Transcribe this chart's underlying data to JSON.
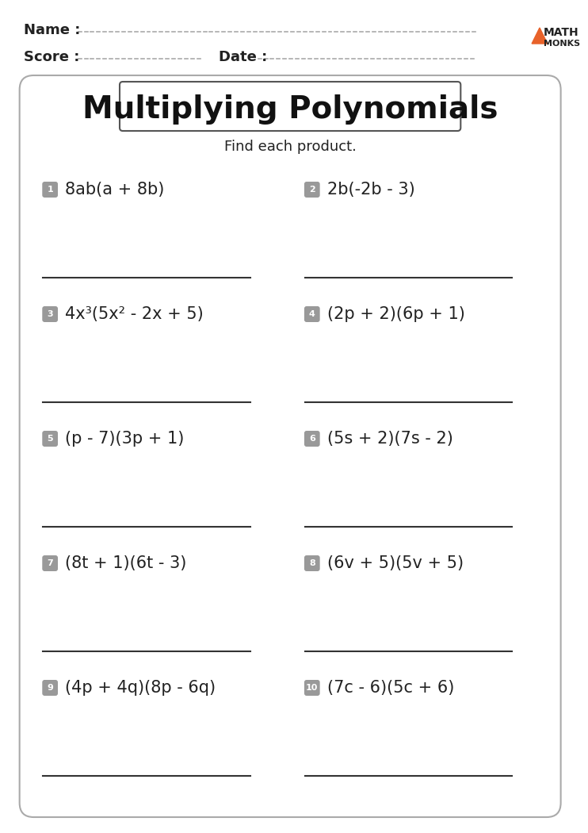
{
  "title": "Multiplying Polynomials",
  "subtitle": "Find each product.",
  "name_label": "Name :",
  "score_label": "Score :",
  "date_label": "Date :",
  "math_monks_text": "MATH\nMONKS",
  "problems": [
    {
      "num": "1",
      "expr": "8ab(a + 8b)"
    },
    {
      "num": "2",
      "expr": "2b(-2b - 3)"
    },
    {
      "num": "3",
      "expr": "4x³(5x² - 2x + 5)"
    },
    {
      "num": "4",
      "expr": "(2p + 2)(6p + 1)"
    },
    {
      "num": "5",
      "expr": "(p - 7)(3p + 1)"
    },
    {
      "num": "6",
      "expr": "(5s + 2)(7s - 2)"
    },
    {
      "num": "7",
      "expr": "(8t + 1)(6t - 3)"
    },
    {
      "num": "8",
      "expr": "(6v + 5)(5v + 5)"
    },
    {
      "num": "9",
      "expr": "(4p + 4q)(8p - 6q)"
    },
    {
      "num": "10",
      "expr": "(7c - 6)(5c + 6)"
    }
  ],
  "bg_color": "#ffffff",
  "box_bg": "#f0f0f0",
  "number_badge_color": "#999999",
  "number_badge_text_color": "#ffffff",
  "title_font_size": 28,
  "subtitle_font_size": 13,
  "problem_font_size": 15,
  "header_font_size": 13,
  "orange_color": "#E8622A",
  "border_color": "#aaaaaa",
  "line_color": "#333333",
  "dashed_color": "#aaaaaa"
}
